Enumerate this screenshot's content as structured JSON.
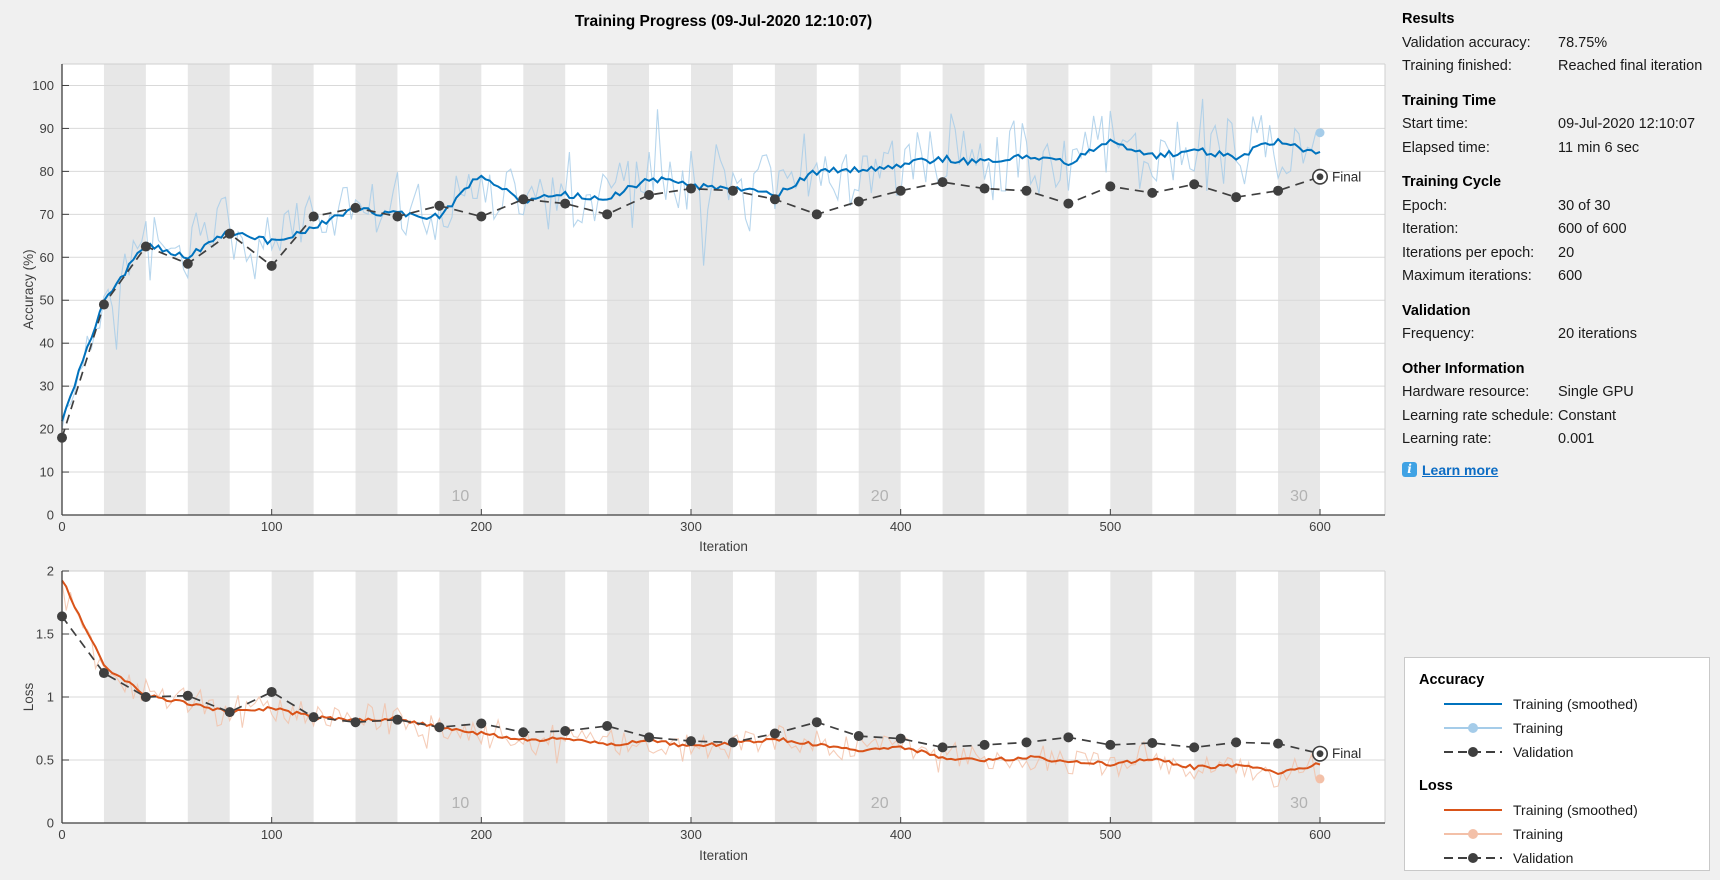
{
  "title": "Training Progress (09-Jul-2020 12:10:07)",
  "colors": {
    "background": "#f0f0f0",
    "plot_background": "#ffffff",
    "epoch_band": "#e7e7e7",
    "gridline": "#d9d9d9",
    "axis": "#3f3f3f",
    "epoch_label": "#b2b2b2",
    "accuracy_smoothed": "#0072BD",
    "accuracy_raw": "#a5cce9",
    "loss_smoothed": "#D95319",
    "loss_raw": "#f3c0a8",
    "validation": "#3f3f3f",
    "link": "#0b6cc4",
    "info_icon": "#3fa2e4"
  },
  "results_panel": {
    "sections": [
      {
        "header": "Results",
        "rows": [
          [
            "Validation accuracy:",
            "78.75%"
          ],
          [
            "Training finished:",
            "Reached final iteration"
          ]
        ]
      },
      {
        "header": "Training Time",
        "rows": [
          [
            "Start time:",
            "09-Jul-2020 12:10:07"
          ],
          [
            "Elapsed time:",
            "11 min 6 sec"
          ]
        ]
      },
      {
        "header": "Training Cycle",
        "rows": [
          [
            "Epoch:",
            "30 of 30"
          ],
          [
            "Iteration:",
            "600 of 600"
          ],
          [
            "Iterations per epoch:",
            "20"
          ],
          [
            "Maximum iterations:",
            "600"
          ]
        ]
      },
      {
        "header": "Validation",
        "rows": [
          [
            "Frequency:",
            "20 iterations"
          ]
        ]
      },
      {
        "header": "Other Information",
        "rows": [
          [
            "Hardware resource:",
            "Single GPU"
          ],
          [
            "Learning rate schedule:",
            "Constant"
          ],
          [
            "Learning rate:",
            "0.001"
          ]
        ]
      }
    ],
    "learn_more_label": "Learn more",
    "info_icon_glyph": "i"
  },
  "legend": {
    "groups": [
      {
        "header": "Accuracy",
        "entries": [
          {
            "label": "Training (smoothed)",
            "style": "solid",
            "color": "#0072BD"
          },
          {
            "label": "Training",
            "style": "solid-marker",
            "color": "#a5cce9"
          },
          {
            "label": "Validation",
            "style": "dashed-marker",
            "color": "#3f3f3f"
          }
        ]
      },
      {
        "header": "Loss",
        "entries": [
          {
            "label": "Training (smoothed)",
            "style": "solid",
            "color": "#D95319"
          },
          {
            "label": "Training",
            "style": "solid-marker",
            "color": "#f3c0a8"
          },
          {
            "label": "Validation",
            "style": "dashed-marker",
            "color": "#3f3f3f"
          }
        ]
      }
    ]
  },
  "chart_data": [
    {
      "type": "line",
      "title": "",
      "xlabel": "Iteration",
      "ylabel": "Accuracy (%)",
      "xlim": [
        0,
        631
      ],
      "ylim": [
        0,
        105
      ],
      "xticks": [
        0,
        100,
        200,
        300,
        400,
        500,
        600
      ],
      "yticks": [
        0,
        10,
        20,
        30,
        40,
        50,
        60,
        70,
        80,
        90,
        100
      ],
      "grid": true,
      "iterations_per_epoch": 20,
      "epochs": 30,
      "epoch_labels": [
        {
          "text": "10",
          "iteration": 190
        },
        {
          "text": "20",
          "iteration": 390
        },
        {
          "text": "30",
          "iteration": 590
        }
      ],
      "series": [
        {
          "name": "Training (smoothed)",
          "color": "#0072BD",
          "style": "solid",
          "width": 2,
          "x_step": 20,
          "y": [
            22,
            50,
            63,
            60,
            66,
            63.5,
            67,
            71,
            70,
            69.5,
            79.5,
            73,
            74.5,
            73.5,
            78.5,
            76.5,
            76,
            74.5,
            80,
            80.5,
            81.5,
            83,
            82,
            83.5,
            82,
            87.5,
            83.5,
            85,
            83.5,
            87,
            84
          ]
        },
        {
          "name": "Training",
          "color": "#a5cce9",
          "style": "raw-noisy",
          "derived_from": "Training (smoothed)",
          "noise_amplitude": 5.5,
          "seed": 7,
          "final_y": 89
        },
        {
          "name": "Validation",
          "color": "#3f3f3f",
          "style": "dashed-marker",
          "x_step": 20,
          "y": [
            18,
            49,
            62.5,
            58.5,
            65.5,
            58,
            69.5,
            71.5,
            69.5,
            72,
            69.5,
            73.5,
            72.5,
            70,
            74.5,
            76,
            75.5,
            73.5,
            70,
            73,
            75.5,
            77.5,
            76,
            75.5,
            72.5,
            76.5,
            75,
            77,
            74,
            75.5,
            78.75
          ]
        }
      ],
      "final_annotation": {
        "label": "Final",
        "iteration": 600,
        "value": 78.75
      }
    },
    {
      "type": "line",
      "title": "",
      "xlabel": "Iteration",
      "ylabel": "Loss",
      "xlim": [
        0,
        631
      ],
      "ylim": [
        0,
        2
      ],
      "xticks": [
        0,
        100,
        200,
        300,
        400,
        500,
        600
      ],
      "yticks": [
        0,
        0.5,
        1,
        1.5,
        2
      ],
      "grid": true,
      "iterations_per_epoch": 20,
      "epochs": 30,
      "epoch_labels": [
        {
          "text": "10",
          "iteration": 190
        },
        {
          "text": "20",
          "iteration": 390
        },
        {
          "text": "30",
          "iteration": 590
        }
      ],
      "series": [
        {
          "name": "Training (smoothed)",
          "color": "#D95319",
          "style": "solid",
          "width": 2,
          "x_step": 20,
          "y": [
            1.93,
            1.25,
            1.01,
            0.95,
            0.88,
            0.91,
            0.84,
            0.81,
            0.83,
            0.76,
            0.71,
            0.66,
            0.67,
            0.62,
            0.65,
            0.61,
            0.63,
            0.67,
            0.62,
            0.57,
            0.61,
            0.52,
            0.5,
            0.52,
            0.49,
            0.47,
            0.51,
            0.44,
            0.46,
            0.4,
            0.47
          ]
        },
        {
          "name": "Training",
          "color": "#f3c0a8",
          "style": "raw-noisy",
          "derived_from": "Training (smoothed)",
          "noise_amplitude": 0.075,
          "seed": 13,
          "final_y": 0.35
        },
        {
          "name": "Validation",
          "color": "#3f3f3f",
          "style": "dashed-marker",
          "x_step": 20,
          "y": [
            1.64,
            1.19,
            1.0,
            1.01,
            0.88,
            1.04,
            0.84,
            0.8,
            0.82,
            0.76,
            0.79,
            0.72,
            0.73,
            0.77,
            0.68,
            0.65,
            0.64,
            0.71,
            0.8,
            0.69,
            0.67,
            0.6,
            0.62,
            0.64,
            0.68,
            0.62,
            0.635,
            0.6,
            0.64,
            0.63,
            0.55
          ]
        }
      ],
      "final_annotation": {
        "label": "Final",
        "iteration": 600,
        "value": 0.55
      }
    }
  ]
}
